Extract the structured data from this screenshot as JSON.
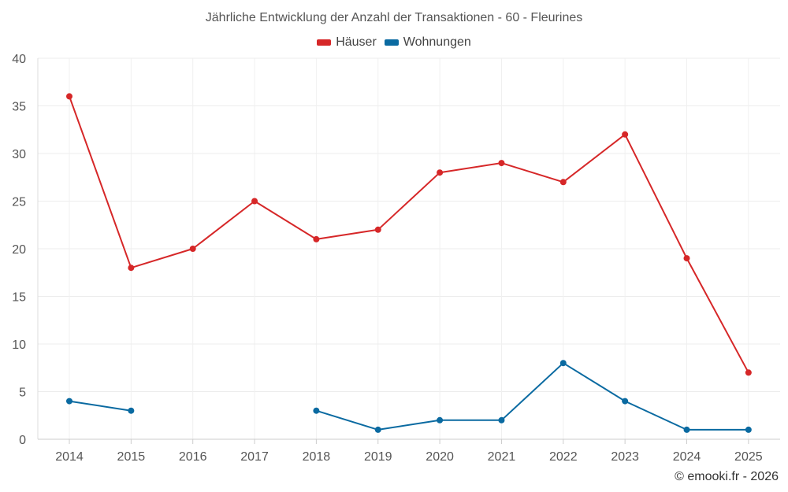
{
  "chart_data": {
    "type": "line",
    "title": "Jährliche Entwicklung der Anzahl der Transaktionen - 60 - Fleurines",
    "categories": [
      "2014",
      "2015",
      "2016",
      "2017",
      "2018",
      "2019",
      "2020",
      "2021",
      "2022",
      "2023",
      "2024",
      "2025"
    ],
    "series": [
      {
        "name": "Häuser",
        "color": "#d62728",
        "values": [
          36,
          18,
          20,
          25,
          21,
          22,
          28,
          29,
          27,
          32,
          19,
          7
        ]
      },
      {
        "name": "Wohnungen",
        "color": "#0a6aa1",
        "values": [
          4,
          3,
          null,
          null,
          3,
          1,
          2,
          2,
          8,
          4,
          1,
          1
        ]
      }
    ],
    "yticks": [
      "0",
      "5",
      "10",
      "15",
      "20",
      "25",
      "30",
      "35",
      "40"
    ],
    "ylim": [
      0,
      40
    ],
    "xlabel": "",
    "ylabel": "",
    "grid": true,
    "legend_position": "top-center"
  },
  "credit": "© emooki.fr - 2026"
}
